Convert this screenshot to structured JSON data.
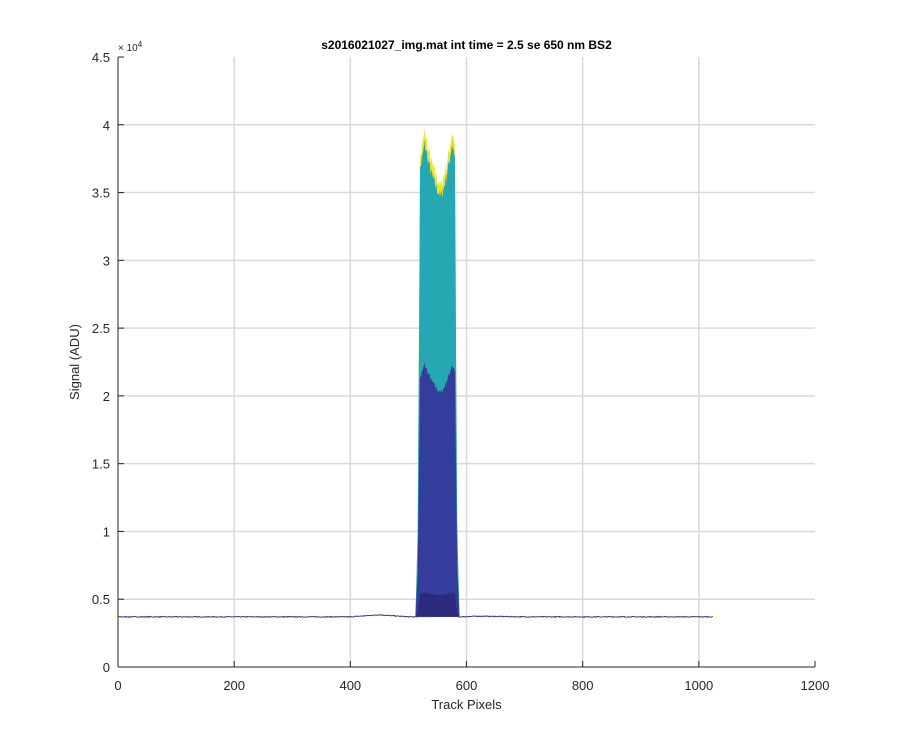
{
  "chart_data": {
    "type": "area",
    "title": "s2016021027_img.mat int time = 2.5 se  650 nm BS2",
    "xlabel": "Track Pixels",
    "ylabel": "Signal (ADU)",
    "xlim": [
      0,
      1200
    ],
    "ylim": [
      0,
      45000
    ],
    "x_ticks": [
      0,
      200,
      400,
      600,
      800,
      1000,
      1200
    ],
    "x_tick_labels": [
      "0",
      "200",
      "400",
      "600",
      "800",
      "1000",
      "1200"
    ],
    "y_ticks": [
      0,
      5000,
      10000,
      15000,
      20000,
      25000,
      30000,
      35000,
      40000,
      45000
    ],
    "y_tick_labels": [
      "0",
      "0.5",
      "1",
      "1.5",
      "2",
      "2.5",
      "3",
      "3.5",
      "4",
      "4.5"
    ],
    "y_exponent_label": "× 10",
    "y_exponent_power": "4",
    "grid": true,
    "colors": {
      "baseline": "#3a3a8c",
      "dark_band": "#2b2a7f",
      "blue_band": "#343d9c",
      "teal_band": "#26a8b3",
      "yellow_band": "#f0e12a"
    },
    "series": [
      {
        "x": [
          0,
          100,
          200,
          300,
          400,
          450,
          500,
          515,
          520,
          528,
          535,
          540,
          545,
          550,
          555,
          560,
          565,
          570,
          575,
          580,
          585,
          590,
          620,
          700,
          800,
          900,
          1024
        ],
        "values": [
          3700,
          3700,
          3700,
          3700,
          3700,
          3850,
          3700,
          3700,
          37500,
          39500,
          38000,
          37200,
          36500,
          36000,
          35500,
          36000,
          37000,
          38000,
          39500,
          38500,
          3700,
          3700,
          3750,
          3700,
          3700,
          3700,
          3700
        ]
      }
    ]
  }
}
